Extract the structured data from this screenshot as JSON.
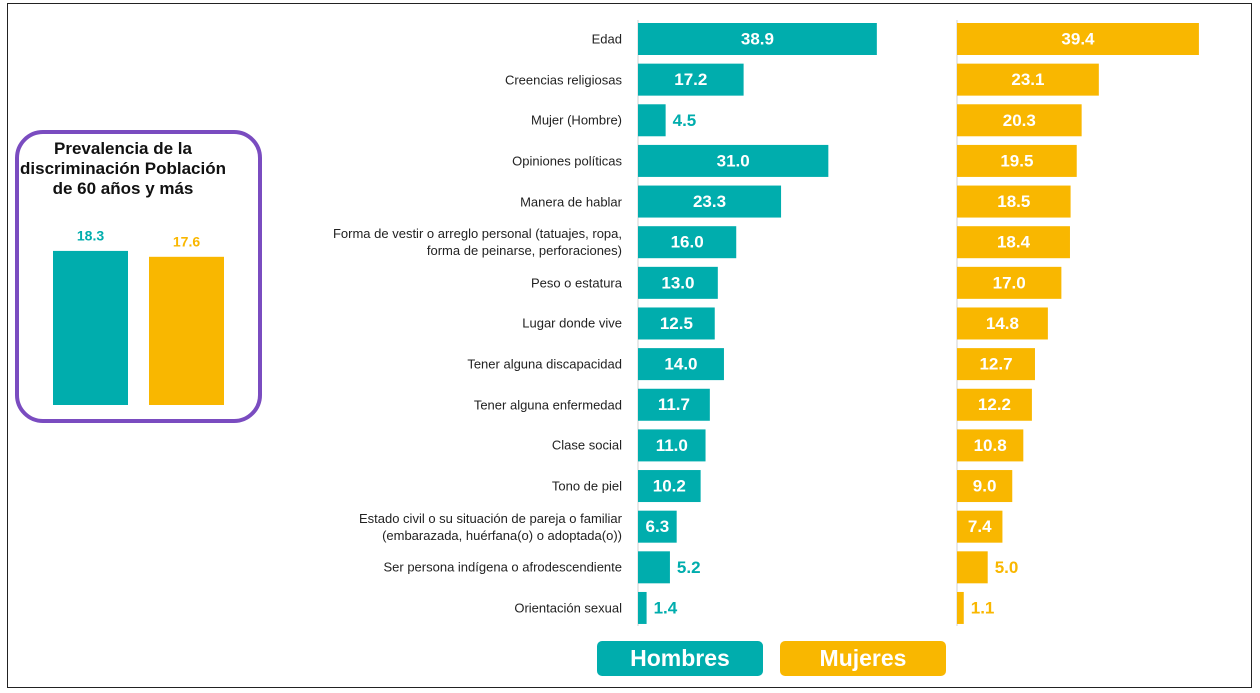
{
  "chart_data": [
    {
      "type": "bar",
      "orientation": "horizontal",
      "categories": [
        "Edad",
        "Creencias religiosas",
        "Mujer (Hombre)",
        "Opiniones políticas",
        "Manera de hablar",
        "Forma de vestir o arreglo personal (tatuajes, ropa,\nforma de peinarse, perforaciones)",
        "Peso o estatura",
        "Lugar donde vive",
        "Tener alguna discapacidad",
        "Tener alguna enfermedad",
        "Clase social",
        "Tono de piel",
        "Estado civil o su situación de pareja o familiar\n(embarazada, huérfana(o) o adoptada(o))",
        "Ser persona indígena o afrodescendiente",
        "Orientación sexual"
      ],
      "xlim": [
        0,
        40
      ],
      "series": [
        {
          "name": "Hombres",
          "color": "#00adad",
          "values": [
            38.9,
            17.2,
            4.5,
            31.0,
            23.3,
            16.0,
            13.0,
            12.5,
            14.0,
            11.7,
            11.0,
            10.2,
            6.3,
            5.2,
            1.4
          ],
          "value_labels": [
            "38.9",
            "17.2",
            "4.5",
            "31.0",
            "23.3",
            "16.0",
            "13.0",
            "12.5",
            "14.0",
            "11.7",
            "11.0",
            "10.2",
            "6.3",
            "5.2",
            "1.4"
          ]
        },
        {
          "name": "Mujeres",
          "color": "#f9b700",
          "values": [
            39.4,
            23.1,
            20.3,
            19.5,
            18.5,
            18.4,
            17.0,
            14.8,
            12.7,
            12.2,
            10.8,
            9.0,
            7.4,
            5.0,
            1.1
          ],
          "value_labels": [
            "39.4",
            "23.1",
            "20.3",
            "19.5",
            "18.5",
            "18.4",
            "17.0",
            "14.8",
            "12.7",
            "12.2",
            "10.8",
            "9.0",
            "7.4",
            "5.0",
            "1.1"
          ]
        }
      ]
    },
    {
      "type": "bar",
      "title": "Prevalencia de la discriminación Población de 60 años y más",
      "ylim": [
        0,
        25
      ],
      "values": [
        18.3,
        17.6
      ],
      "colors": [
        "#00adad",
        "#f9b700"
      ]
    }
  ]
}
